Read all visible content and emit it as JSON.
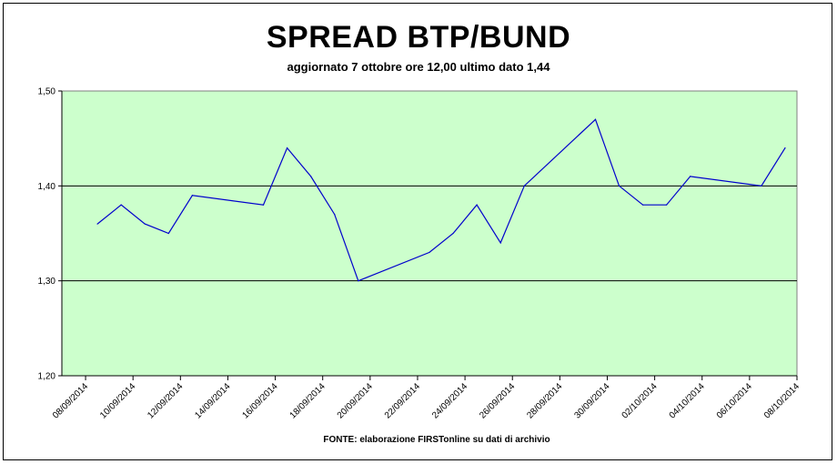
{
  "chart_data": {
    "type": "line",
    "title": "SPREAD BTP/BUND",
    "subtitle": "aggiornato 7 ottobre ore 12,00 ultimo dato 1,44",
    "source": "FONTE: elaborazione FIRSTonline su dati di archivio",
    "xlabel": "",
    "ylabel": "",
    "ylim": [
      1.2,
      1.5
    ],
    "y_ticks": [
      "1,20",
      "1,30",
      "1,40",
      "1,50"
    ],
    "x_ticks": [
      "08/09/2014",
      "10/09/2014",
      "12/09/2014",
      "14/09/2014",
      "16/09/2014",
      "18/09/2014",
      "20/09/2014",
      "22/09/2014",
      "24/09/2014",
      "26/09/2014",
      "28/09/2014",
      "30/09/2014",
      "02/10/2014",
      "04/10/2014",
      "06/10/2014",
      "08/10/2014"
    ],
    "grid": "horizontal",
    "series": [
      {
        "color": "#0000cc",
        "points": [
          {
            "x": "2014-09-08",
            "y": 1.36
          },
          {
            "x": "2014-09-09",
            "y": 1.38
          },
          {
            "x": "2014-09-10",
            "y": 1.36
          },
          {
            "x": "2014-09-11",
            "y": 1.35
          },
          {
            "x": "2014-09-12",
            "y": 1.39
          },
          {
            "x": "2014-09-15",
            "y": 1.38
          },
          {
            "x": "2014-09-16",
            "y": 1.44
          },
          {
            "x": "2014-09-17",
            "y": 1.41
          },
          {
            "x": "2014-09-18",
            "y": 1.37
          },
          {
            "x": "2014-09-19",
            "y": 1.3
          },
          {
            "x": "2014-09-22",
            "y": 1.33
          },
          {
            "x": "2014-09-23",
            "y": 1.35
          },
          {
            "x": "2014-09-24",
            "y": 1.38
          },
          {
            "x": "2014-09-25",
            "y": 1.34
          },
          {
            "x": "2014-09-26",
            "y": 1.4
          },
          {
            "x": "2014-09-29",
            "y": 1.47
          },
          {
            "x": "2014-09-30",
            "y": 1.4
          },
          {
            "x": "2014-10-01",
            "y": 1.38
          },
          {
            "x": "2014-10-02",
            "y": 1.38
          },
          {
            "x": "2014-10-03",
            "y": 1.41
          },
          {
            "x": "2014-10-06",
            "y": 1.4
          },
          {
            "x": "2014-10-07",
            "y": 1.44
          }
        ]
      }
    ],
    "colors": {
      "plot_background": "#ccffcc",
      "line": "#0000cc",
      "gridline": "#000000"
    }
  }
}
